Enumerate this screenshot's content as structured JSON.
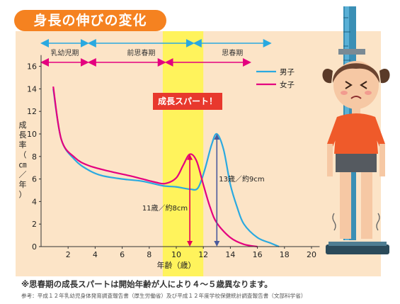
{
  "title": "身長の伸びの変化",
  "spurt_label": "成長スパート！",
  "note": "※思春期の成長スパートは開始年齢が人により４～５歳異なります。",
  "reference": "参考：平成１２年乳幼児身体発育調査報告書（厚生労働省）及び平成１２年度学校保健統計調査報告書（文部科学省）",
  "phases_boys": [
    {
      "label": "乳幼児期",
      "start": 0,
      "end": 3.5
    },
    {
      "label": "前思春期",
      "start": 3.5,
      "end": 11.3
    },
    {
      "label": "思春期",
      "start": 11.3,
      "end": 17
    }
  ],
  "phases_girls": [
    {
      "start": 0,
      "end": 3.5
    },
    {
      "start": 3.5,
      "end": 9.2
    },
    {
      "start": 9.2,
      "end": 15.5
    }
  ],
  "annotations": {
    "girls_peak": "11歳／約8cm",
    "boys_peak": "13歳／約9cm"
  },
  "colors": {
    "title_bg": "#f58220",
    "panel_bg": "#fce4c7",
    "highlight": "#fff35c",
    "boys": "#2aa9e0",
    "girls": "#e4007f",
    "girls_arrow": "#e4005a",
    "boys_arrow": "#4a5a9c",
    "spurt_bg": "#e8382d"
  },
  "chart_data": {
    "type": "line",
    "xlabel": "年齢（歳）",
    "ylabel": "成長率（㎝／年）",
    "xlim": [
      0,
      20
    ],
    "ylim": [
      0,
      17
    ],
    "xticks": [
      2,
      4,
      6,
      8,
      10,
      12,
      14,
      16,
      18,
      20
    ],
    "yticks": [
      0,
      2,
      4,
      6,
      8,
      10,
      12,
      14,
      16
    ],
    "highlight_range": [
      9,
      12
    ],
    "series": [
      {
        "name": "男子",
        "x": [
          0.9,
          1.5,
          2.5,
          3.5,
          4.5,
          6,
          7.5,
          9,
          10,
          11,
          11.6,
          12.1,
          12.6,
          13,
          13.5,
          14,
          14.5,
          15,
          16,
          17,
          17.6
        ],
        "y": [
          14,
          9.5,
          7.7,
          6.8,
          6.3,
          6,
          5.8,
          5.4,
          5.3,
          5.1,
          5.2,
          6.8,
          9,
          10,
          8.6,
          5.5,
          3.5,
          2,
          0.8,
          0.3,
          0
        ]
      },
      {
        "name": "女子",
        "x": [
          0.9,
          1.5,
          2.5,
          3.5,
          5,
          6.5,
          7.5,
          8.5,
          9.2,
          10,
          10.5,
          11,
          11.5,
          12,
          12.5,
          13,
          14,
          15,
          16
        ],
        "y": [
          14.2,
          9.5,
          7.9,
          7.2,
          6.7,
          6.3,
          6,
          5.7,
          5.6,
          6.1,
          7.2,
          8.2,
          7.6,
          5.5,
          3.5,
          2.1,
          0.8,
          0.2,
          0
        ]
      }
    ]
  }
}
